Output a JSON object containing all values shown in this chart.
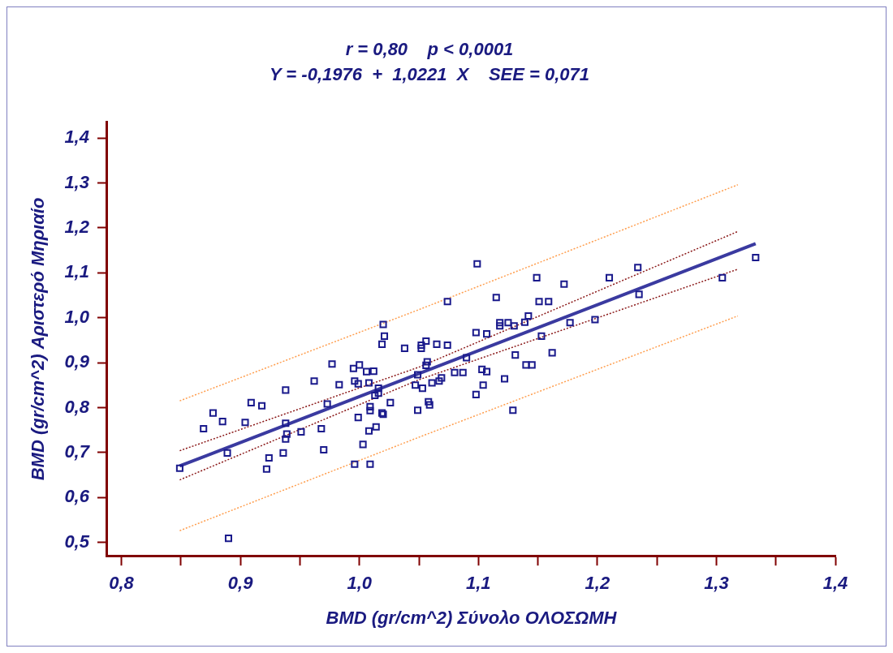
{
  "chart_data": {
    "type": "scatter",
    "title": "r = 0,80    p < 0,0001",
    "subtitle": "Y = -0,1976  +  1,0221  X    SEE = 0,071",
    "xlabel": "BMD (gr/cm^2) Σύνολο ΟΛΟΣΩΜΗ",
    "ylabel": "BMD (gr/cm^2) Αριστερό Μηριαίο",
    "xlim": [
      0.788,
      1.4
    ],
    "ylim": [
      0.47,
      1.435
    ],
    "xticks": [
      {
        "value": 0.8,
        "label": "0,8"
      },
      {
        "value": 0.85,
        "label": null
      },
      {
        "value": 0.9,
        "label": "0,9"
      },
      {
        "value": 0.95,
        "label": null
      },
      {
        "value": 1.0,
        "label": "1,0"
      },
      {
        "value": 1.05,
        "label": null
      },
      {
        "value": 1.1,
        "label": "1,1"
      },
      {
        "value": 1.15,
        "label": null
      },
      {
        "value": 1.2,
        "label": "1,2"
      },
      {
        "value": 1.25,
        "label": null
      },
      {
        "value": 1.3,
        "label": "1,3"
      },
      {
        "value": 1.35,
        "label": null
      },
      {
        "value": 1.4,
        "label": "1,4"
      }
    ],
    "yticks": [
      {
        "value": 0.5,
        "label": "0,5"
      },
      {
        "value": 0.6,
        "label": "0,6"
      },
      {
        "value": 0.7,
        "label": "0,7"
      },
      {
        "value": 0.8,
        "label": "0,8"
      },
      {
        "value": 0.9,
        "label": "0,9"
      },
      {
        "value": 1.0,
        "label": "1,0"
      },
      {
        "value": 1.1,
        "label": "1,1"
      },
      {
        "value": 1.2,
        "label": "1,2"
      },
      {
        "value": 1.3,
        "label": "1,3"
      },
      {
        "value": 1.4,
        "label": "1,4"
      }
    ],
    "grid": false,
    "legend": false,
    "series": [
      {
        "type": "line",
        "color": "#ff9f50",
        "line_style": "dotted",
        "x": [
          0.849,
          1.05,
          1.318
        ],
        "values": [
          0.815,
          1.018,
          1.296
        ]
      },
      {
        "type": "line",
        "color": "#ff9f50",
        "line_style": "dotted",
        "x": [
          0.849,
          1.05,
          1.318
        ],
        "values": [
          0.526,
          0.734,
          1.004
        ]
      },
      {
        "type": "line",
        "color": "#8b1a1a",
        "line_style": "dotted",
        "x": [
          0.849,
          1.05,
          1.318
        ],
        "values": [
          0.704,
          0.89,
          1.192
        ]
      },
      {
        "type": "line",
        "color": "#8b1a1a",
        "line_style": "dotted",
        "x": [
          0.849,
          1.05,
          1.318
        ],
        "values": [
          0.639,
          0.862,
          1.108
        ]
      },
      {
        "type": "line",
        "color": "#3a3aa0",
        "line_style": "solid",
        "x": [
          0.849,
          1.333
        ],
        "values": [
          0.67,
          1.165
        ]
      },
      {
        "type": "scatter",
        "color": "#1a1a8c",
        "marker": "square",
        "x": [
          0.849,
          0.869,
          0.877,
          0.885,
          0.889,
          0.89,
          0.904,
          0.909,
          0.918,
          0.922,
          0.924,
          0.936,
          0.938,
          0.938,
          0.938,
          0.939,
          0.951,
          0.962,
          0.968,
          0.97,
          0.973,
          0.977,
          0.983,
          0.995,
          1.0,
          1.006,
          1.012,
          0.996,
          0.999,
          1.008,
          0.999,
          1.008,
          1.014,
          1.009,
          1.009,
          1.013,
          1.016,
          1.016,
          1.019,
          1.02,
          1.003,
          0.996,
          1.009,
          1.02,
          1.021,
          1.019,
          1.026,
          1.038,
          1.052,
          1.052,
          1.056,
          1.065,
          1.074,
          1.057,
          1.056,
          1.049,
          1.047,
          1.053,
          1.061,
          1.067,
          1.069,
          1.058,
          1.059,
          1.049,
          1.08,
          1.087,
          1.09,
          1.103,
          1.107,
          1.104,
          1.098,
          1.122,
          1.129,
          1.098,
          1.107,
          1.118,
          1.118,
          1.125,
          1.13,
          1.139,
          1.142,
          1.131,
          1.14,
          1.145,
          1.153,
          1.162,
          1.074,
          1.099,
          1.149,
          1.172,
          1.21,
          1.234,
          1.333,
          1.305,
          1.235,
          1.115,
          1.151,
          1.159,
          1.177,
          1.198
        ],
        "values": [
          0.665,
          0.753,
          0.788,
          0.769,
          0.699,
          0.509,
          0.767,
          0.811,
          0.804,
          0.663,
          0.688,
          0.699,
          0.839,
          0.765,
          0.73,
          0.741,
          0.746,
          0.859,
          0.753,
          0.706,
          0.808,
          0.897,
          0.851,
          0.887,
          0.895,
          0.88,
          0.881,
          0.859,
          0.853,
          0.855,
          0.778,
          0.748,
          0.757,
          0.802,
          0.793,
          0.827,
          0.843,
          0.832,
          0.788,
          0.785,
          0.718,
          0.674,
          0.674,
          0.985,
          0.959,
          0.941,
          0.811,
          0.932,
          0.939,
          0.932,
          0.948,
          0.941,
          0.939,
          0.902,
          0.894,
          0.873,
          0.85,
          0.843,
          0.855,
          0.859,
          0.866,
          0.813,
          0.806,
          0.794,
          0.878,
          0.878,
          0.911,
          0.885,
          0.88,
          0.85,
          0.829,
          0.864,
          0.794,
          0.967,
          0.964,
          0.989,
          0.982,
          0.989,
          0.982,
          0.99,
          1.004,
          0.917,
          0.895,
          0.895,
          0.959,
          0.922,
          1.036,
          1.12,
          1.089,
          1.075,
          1.089,
          1.112,
          1.134,
          1.089,
          1.052,
          1.045,
          1.036,
          1.036,
          0.989,
          0.996
        ]
      }
    ]
  }
}
